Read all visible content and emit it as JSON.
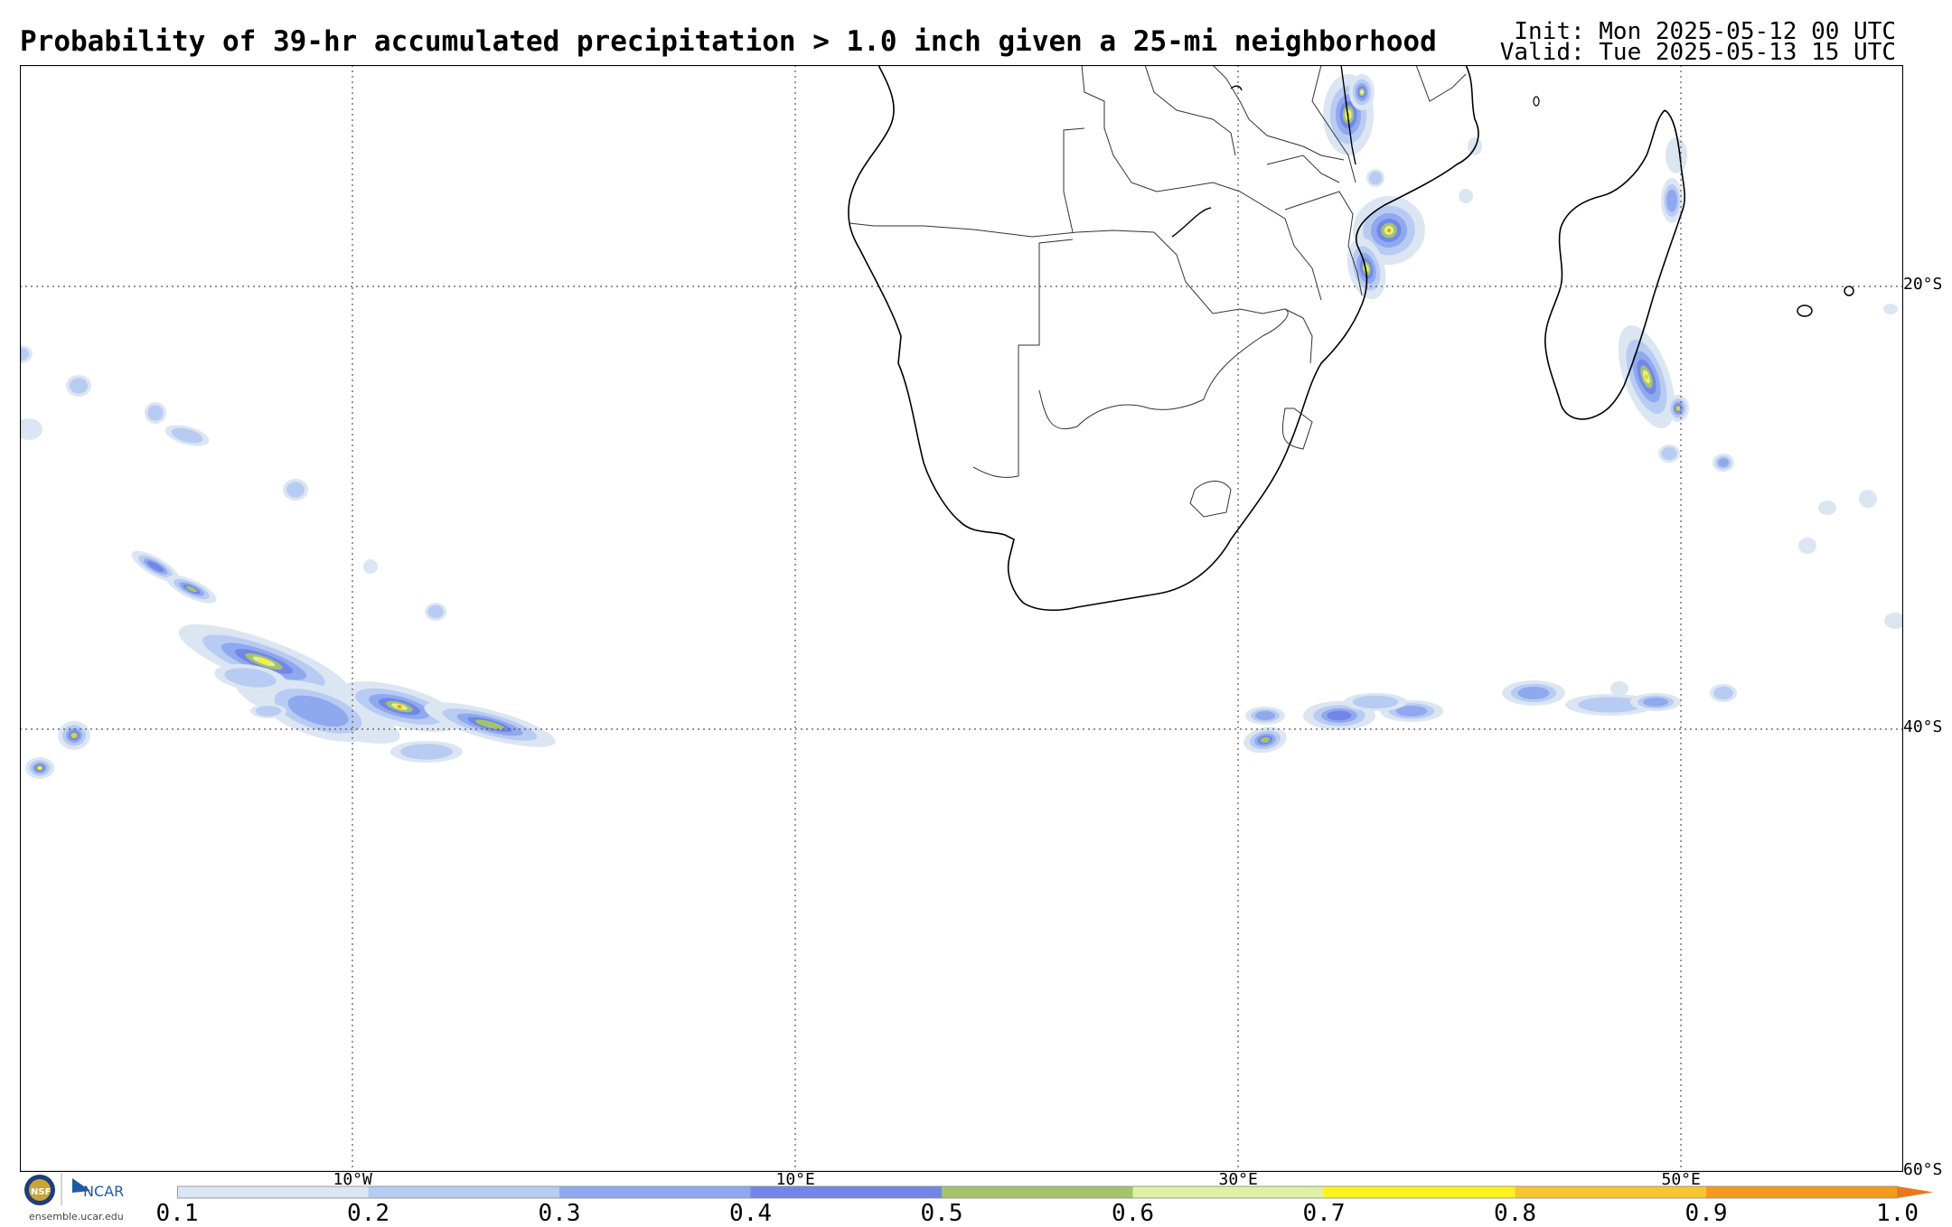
{
  "header": {
    "title": "Probability of 39-hr accumulated precipitation > 1.0 inch given a 25-mi neighborhood",
    "init": "Init: Mon 2025-05-12 00 UTC",
    "valid": "Valid: Tue 2025-05-13 15 UTC"
  },
  "map": {
    "region": "Southern Africa and South Atlantic / Southwest Indian Ocean",
    "lon_range": [
      -17.5,
      67.5
    ],
    "lat_range": [
      -60,
      -10
    ],
    "lat_labels": [
      "20°S",
      "40°S",
      "60°S"
    ],
    "lon_labels": [
      "10°W",
      "10°E",
      "30°E",
      "50°E"
    ],
    "gridlines": "dotted"
  },
  "colorbar": {
    "labels": [
      "0.1",
      "0.2",
      "0.3",
      "0.4",
      "0.5",
      "0.6",
      "0.7",
      "0.8",
      "0.9",
      "1.0"
    ],
    "colors": [
      "#dce6f2",
      "#b8cbf2",
      "#8fa9ef",
      "#7386e8",
      "#a3c46a",
      "#dff0a3",
      "#fff219",
      "#f7c531",
      "#f59a1d"
    ],
    "extend_color": "#f0741a"
  },
  "logo": {
    "nsf": "NSF",
    "ncar": "NCAR",
    "url": "ensemble.ucar.edu"
  }
}
